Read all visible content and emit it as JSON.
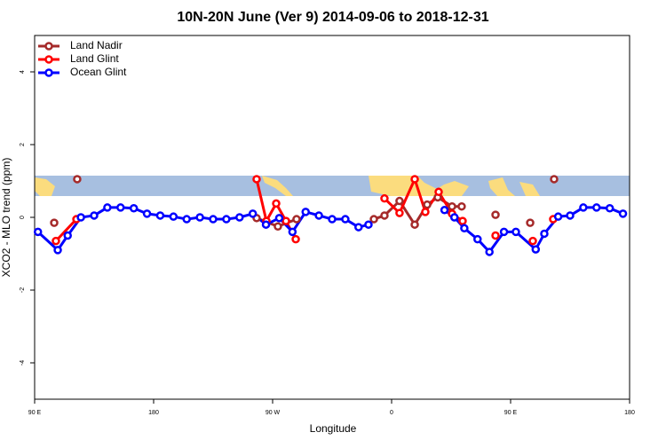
{
  "chart_data": {
    "type": "line",
    "title": "10N-20N June (Ver 9)   2014-09-06 to 2018-12-31",
    "x_label": "Longitude",
    "y_label": "XCO2 - MLO trend (ppm)",
    "xlim": [
      90,
      540
    ],
    "ylim": [
      -5,
      5
    ],
    "xticks": [
      {
        "value": 90,
        "label": "90 E"
      },
      180,
      {
        "value": 270,
        "label": "90 W"
      },
      {
        "value": 360,
        "label": "0"
      },
      {
        "value": 450,
        "label": "90 E"
      },
      {
        "value": 540,
        "label": "180"
      }
    ],
    "yticks": [
      -4,
      -2,
      0,
      2,
      4
    ],
    "legend": "top-left",
    "series": [
      {
        "name": "Land Nadir",
        "color": "#a52a2a",
        "x": [
          104.8,
          null,
          122.2,
          null,
          257.9,
          274,
          288.1,
          null,
          346.6,
          354.6,
          366,
          377.5,
          386.9,
          394.9,
          405.7,
          413,
          null,
          438.6,
          null,
          464.8,
          null,
          482.9
        ],
        "values": [
          -0.15,
          null,
          1.05,
          null,
          -0.02,
          -0.25,
          -0.05,
          null,
          -0.05,
          0.05,
          0.45,
          -0.2,
          0.35,
          0.55,
          0.3,
          0.3,
          null,
          0.07,
          null,
          -0.15,
          null,
          1.05
        ]
      },
      {
        "name": "Land Glint",
        "color": "#ff0000",
        "x": [
          106.1,
          121.6,
          null,
          257.9,
          265.3,
          272.7,
          280.1,
          287.5,
          null,
          354.6,
          366,
          377.5,
          385.5,
          395.6,
          405.7,
          413.7,
          null,
          438.6,
          null,
          466.8,
          null,
          482.2
        ],
        "values": [
          -0.65,
          -0.05,
          null,
          1.05,
          -0.1,
          0.38,
          -0.1,
          -0.6,
          null,
          0.52,
          0.12,
          1.05,
          0.15,
          0.7,
          0.1,
          -0.1,
          null,
          -0.5,
          null,
          -0.65,
          null,
          -0.05
        ]
      },
      {
        "name": "Ocean Glint",
        "color": "#0000ff",
        "x": [
          92.5,
          107.5,
          115,
          125,
          135,
          145,
          155,
          165,
          175,
          185,
          195,
          205,
          215,
          225,
          235,
          245,
          255,
          265,
          275,
          285,
          295,
          305,
          315,
          325,
          335,
          342.5,
          null,
          400,
          407.5,
          415,
          425,
          434,
          445,
          454,
          469,
          475.5,
          486,
          495,
          505,
          515,
          525,
          535
        ],
        "values": [
          -0.4,
          -0.9,
          -0.5,
          0,
          0.05,
          0.27,
          0.27,
          0.25,
          0.1,
          0.05,
          0.02,
          -0.05,
          0,
          -0.05,
          -0.05,
          0,
          0.1,
          -0.2,
          -0.02,
          -0.4,
          0.15,
          0.05,
          -0.05,
          -0.05,
          -0.27,
          -0.2,
          null,
          0.2,
          0,
          -0.3,
          -0.6,
          -0.95,
          -0.4,
          -0.4,
          -0.88,
          -0.45,
          0.02,
          0.05,
          0.27,
          0.27,
          0.25,
          0.1
        ]
      }
    ]
  }
}
